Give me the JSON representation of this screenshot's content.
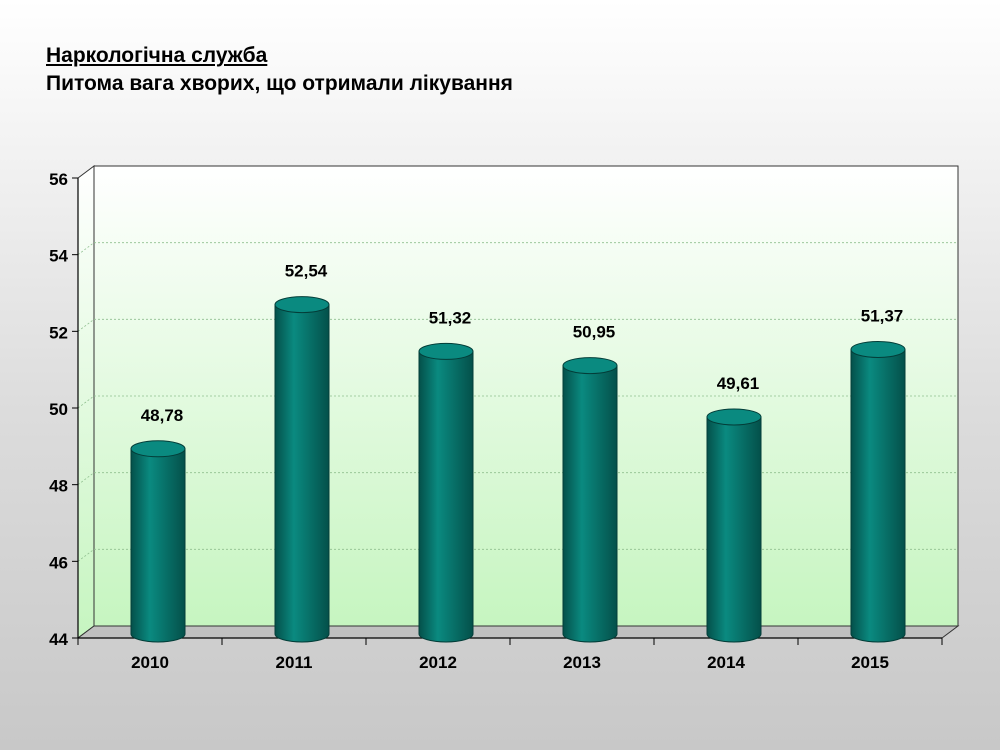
{
  "header": {
    "title": "Наркологічна служба",
    "subtitle": "Питома вага хворих, що отримали лікування"
  },
  "chart_data": {
    "type": "bar",
    "style": "3d-cylinder",
    "categories": [
      "2010",
      "2011",
      "2012",
      "2013",
      "2014",
      "2015"
    ],
    "values": [
      48.78,
      52.54,
      51.32,
      50.95,
      49.61,
      51.37
    ],
    "data_labels": [
      "48,78",
      "52,54",
      "51,32",
      "50,95",
      "49,61",
      "51,37"
    ],
    "yticks": [
      "44",
      "46",
      "48",
      "50",
      "52",
      "54",
      "56"
    ],
    "ylim": [
      44,
      56
    ],
    "ytick_step": 2,
    "grid": true,
    "legend": "none",
    "colors": {
      "bar": "#0a8a80",
      "bar_dark": "#04504a",
      "wall_top": "#ffffff",
      "wall_bottom": "#c6f5c0",
      "floor": "#c0c0c0"
    }
  }
}
